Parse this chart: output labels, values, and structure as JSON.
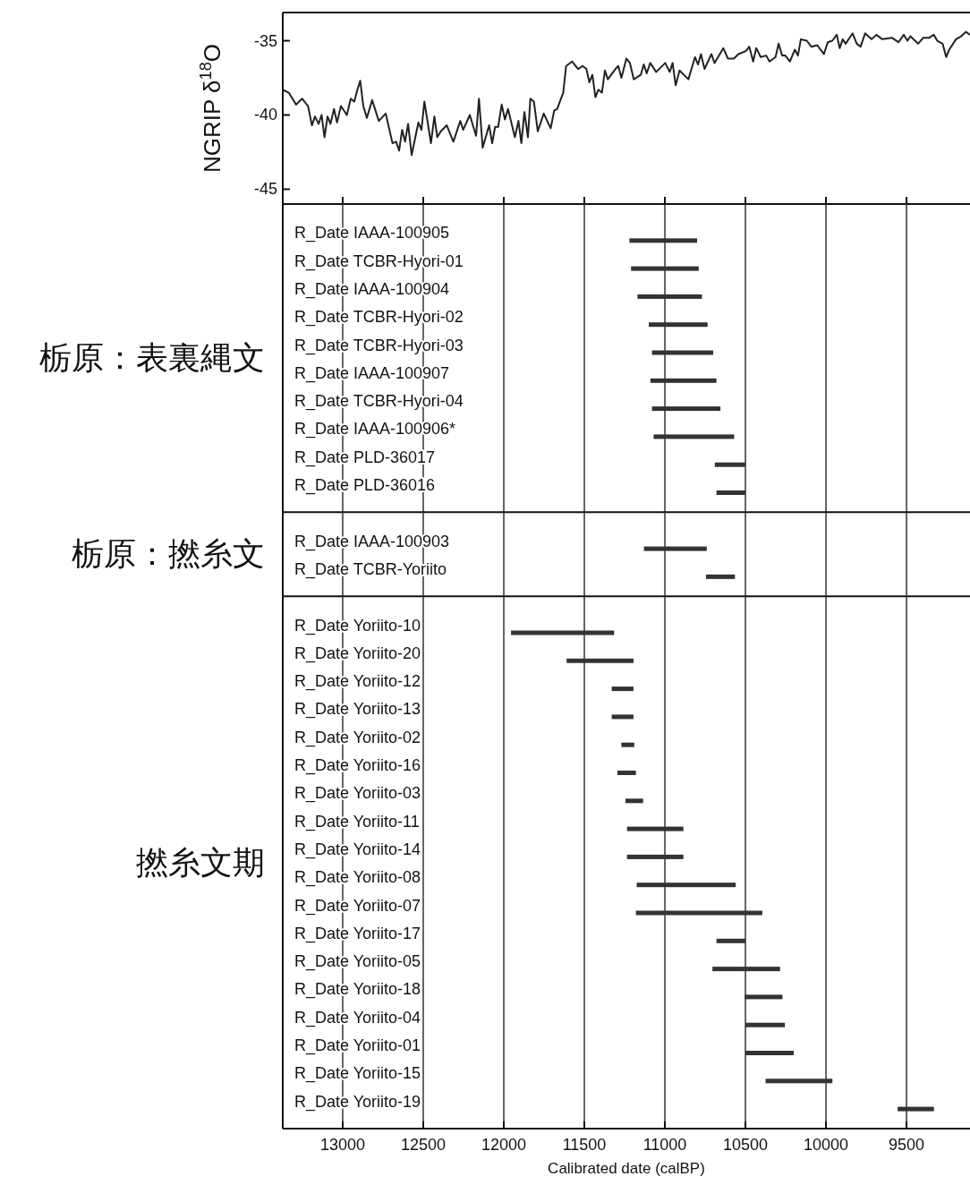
{
  "chart_data": [
    {
      "type": "line",
      "ylabel": "NGRIP δ$^{18}$O",
      "color": "#222222",
      "tick_labels": "y",
      "xlim": [
        13372,
        9106
      ],
      "xticks": [
        13000,
        12500,
        12000,
        11500,
        11000,
        10500,
        10000,
        9500
      ],
      "ylim": [
        -46,
        -33.1
      ],
      "yticks": [
        -35,
        -40,
        -45
      ],
      "x": [
        13372,
        13335,
        13289,
        13252,
        13215,
        13191,
        13172,
        13150,
        13131,
        13113,
        13094,
        13076,
        13054,
        13035,
        13011,
        12974,
        12950,
        12928,
        12909,
        12891,
        12872,
        12850,
        12817,
        12776,
        12733,
        12691,
        12668,
        12650,
        12631,
        12613,
        12594,
        12572,
        12530,
        12511,
        12493,
        12452,
        12431,
        12413,
        12391,
        12354,
        12313,
        12270,
        12252,
        12211,
        12172,
        12154,
        12131,
        12091,
        12072,
        12054,
        12035,
        12013,
        11993,
        11974,
        11931,
        11909,
        11891,
        11872,
        11850,
        11835,
        11813,
        11789,
        11752,
        11709,
        11687,
        11669,
        11631,
        11613,
        11576,
        11539,
        11511,
        11487,
        11469,
        11450,
        11431,
        11413,
        11391,
        11372,
        11354,
        11307,
        11289,
        11270,
        11239,
        11217,
        11193,
        11150,
        11131,
        11113,
        11091,
        11054,
        10998,
        10970,
        10952,
        10933,
        10909,
        10854,
        10813,
        10794,
        10776,
        10754,
        10711,
        10692,
        10637,
        10609,
        10572,
        10544,
        10498,
        10476,
        10452,
        10433,
        10405,
        10372,
        10350,
        10313,
        10294,
        10272,
        10253,
        10224,
        10193,
        10174,
        10156,
        10119,
        10091,
        10054,
        10013,
        9989,
        9961,
        9933,
        9915,
        9896,
        9878,
        9835,
        9809,
        9785,
        9757,
        9717,
        9687,
        9650,
        9591,
        9550,
        9517,
        9494,
        9476,
        9428,
        9396,
        9359,
        9331,
        9309,
        9276,
        9254,
        9235,
        9193,
        9161,
        9131,
        9106
      ],
      "values": [
        -38.3,
        -38.5,
        -39.3,
        -38.9,
        -39.4,
        -40.7,
        -40.1,
        -40.6,
        -40.0,
        -41.5,
        -40.1,
        -40.6,
        -39.6,
        -40.5,
        -39.4,
        -40.0,
        -38.9,
        -39.1,
        -38.3,
        -37.7,
        -39.4,
        -40.2,
        -39.0,
        -40.4,
        -39.9,
        -41.9,
        -41.8,
        -42.4,
        -41.0,
        -41.8,
        -40.6,
        -42.7,
        -40.5,
        -41.0,
        -39.1,
        -41.9,
        -40.1,
        -41.5,
        -41.1,
        -40.7,
        -41.8,
        -40.4,
        -41.0,
        -40.0,
        -41.4,
        -38.9,
        -42.2,
        -40.7,
        -41.9,
        -40.8,
        -40.8,
        -39.3,
        -40.3,
        -39.6,
        -41.5,
        -40.4,
        -41.9,
        -39.8,
        -41.5,
        -38.9,
        -39.1,
        -41.1,
        -39.9,
        -40.9,
        -39.7,
        -39.6,
        -38.5,
        -36.7,
        -36.4,
        -36.9,
        -36.7,
        -36.9,
        -37.8,
        -37.3,
        -38.8,
        -38.3,
        -38.5,
        -37.0,
        -37.6,
        -36.9,
        -36.7,
        -37.5,
        -36.2,
        -36.5,
        -37.6,
        -37.3,
        -36.6,
        -37.2,
        -36.5,
        -37.1,
        -36.5,
        -37.1,
        -36.5,
        -38.0,
        -37.0,
        -37.6,
        -36.1,
        -36.6,
        -35.9,
        -36.9,
        -35.9,
        -36.5,
        -35.5,
        -36.2,
        -36.2,
        -35.9,
        -35.7,
        -35.4,
        -36.4,
        -35.5,
        -36.1,
        -36.0,
        -36.4,
        -36.1,
        -35.2,
        -36.0,
        -36.0,
        -36.4,
        -35.6,
        -36.0,
        -34.9,
        -35.0,
        -35.4,
        -35.3,
        -35.9,
        -35.1,
        -35.0,
        -34.6,
        -35.5,
        -34.9,
        -35.2,
        -34.5,
        -35.2,
        -35.4,
        -34.5,
        -34.9,
        -34.6,
        -34.9,
        -34.8,
        -35.1,
        -34.6,
        -35.0,
        -34.7,
        -35.2,
        -34.8,
        -34.8,
        -34.6,
        -35.0,
        -35.2,
        -36.1,
        -35.6,
        -34.9,
        -34.7,
        -34.4,
        -34.6
      ]
    },
    {
      "type": "bar",
      "orientation": "horizontal",
      "title": "栃原：表裏縄文",
      "color": "#333333",
      "grid": "x",
      "tick_labels": false,
      "xlim": [
        13372,
        9106
      ],
      "xticks": [
        13000,
        12500,
        12000,
        11500,
        11000,
        10500,
        10000,
        9500
      ],
      "categories": [
        "R_Date IAAA-100905",
        "R_Date TCBR-Hyori-01",
        "R_Date IAAA-100904",
        "R_Date TCBR-Hyori-02",
        "R_Date TCBR-Hyori-03",
        "R_Date IAAA-100907",
        "R_Date TCBR-Hyori-04",
        "R_Date IAAA-100906*",
        "R_Date PLD-36017",
        "R_Date PLD-36016"
      ],
      "base": [
        10800,
        10790,
        10770,
        10735,
        10700,
        10680,
        10655,
        10570,
        10500,
        10500
      ],
      "values": [
        420,
        420,
        400,
        365,
        380,
        410,
        425,
        500,
        190,
        180
      ]
    },
    {
      "type": "bar",
      "orientation": "horizontal",
      "title": "栃原：撚糸文",
      "color": "#333333",
      "grid": "x",
      "tick_labels": false,
      "xlim": [
        13372,
        9106
      ],
      "xticks": [
        13000,
        12500,
        12000,
        11500,
        11000,
        10500,
        10000,
        9500
      ],
      "categories": [
        "R_Date IAAA-100903",
        "R_Date TCBR-Yoriito"
      ],
      "base": [
        10740,
        10565
      ],
      "values": [
        390,
        180
      ]
    },
    {
      "type": "bar",
      "orientation": "horizontal",
      "title": "撚糸文期",
      "xlabel": "Calibrated date (calBP)",
      "color": "#333333",
      "grid": "x",
      "tick_labels": "x",
      "xlim": [
        13372,
        9106
      ],
      "xticks": [
        13000,
        12500,
        12000,
        11500,
        11000,
        10500,
        10000,
        9500
      ],
      "categories": [
        "R_Date Yoriito-10",
        "R_Date Yoriito-20",
        "R_Date Yoriito-12",
        "R_Date Yoriito-13",
        "R_Date Yoriito-02",
        "R_Date Yoriito-16",
        "R_Date Yoriito-03",
        "R_Date Yoriito-11",
        "R_Date Yoriito-14",
        "R_Date Yoriito-08",
        "R_Date Yoriito-07",
        "R_Date Yoriito-17",
        "R_Date Yoriito-05",
        "R_Date Yoriito-18",
        "R_Date Yoriito-04",
        "R_Date Yoriito-01",
        "R_Date Yoriito-15",
        "R_Date Yoriito-19"
      ],
      "base": [
        11315,
        11195,
        11195,
        11195,
        11190,
        11180,
        11135,
        10885,
        10885,
        10560,
        10395,
        10500,
        10285,
        10270,
        10255,
        10200,
        9960,
        9330
      ],
      "values": [
        640,
        415,
        135,
        135,
        80,
        115,
        110,
        350,
        350,
        615,
        785,
        180,
        420,
        235,
        245,
        300,
        415,
        225
      ]
    }
  ]
}
